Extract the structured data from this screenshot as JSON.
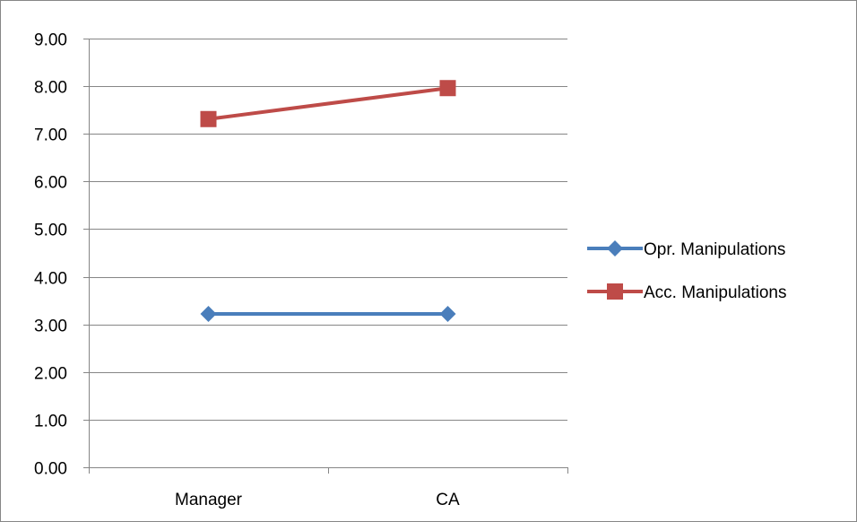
{
  "chart_data": {
    "type": "line",
    "categories": [
      "Manager",
      "CA"
    ],
    "series": [
      {
        "name": "Opr. Manipulations",
        "values": [
          3.22,
          3.22
        ],
        "color": "#4a7ebb",
        "marker": "diamond"
      },
      {
        "name": "Acc. Manipulations",
        "values": [
          7.31,
          7.96
        ],
        "color": "#be4b48",
        "marker": "square"
      }
    ],
    "ylim": [
      0,
      9
    ],
    "yticks": [
      "0.00",
      "1.00",
      "2.00",
      "3.00",
      "4.00",
      "5.00",
      "6.00",
      "7.00",
      "8.00",
      "9.00"
    ],
    "grid": true,
    "legend_position": "right"
  }
}
